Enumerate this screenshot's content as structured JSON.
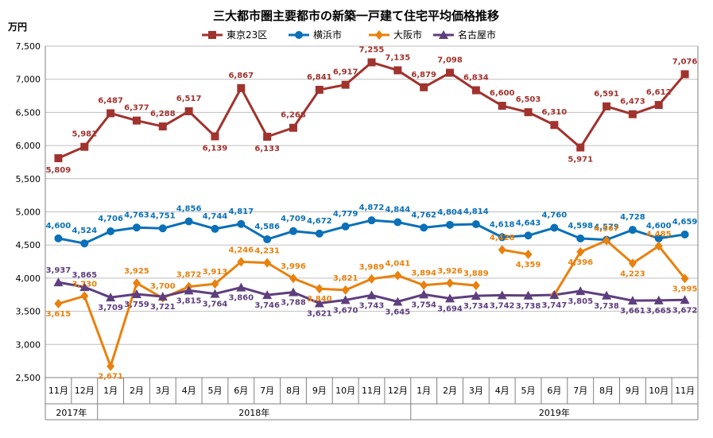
{
  "chart_data": {
    "type": "line",
    "title": "三大都市圏主要都市の新築一戸建て住宅平均価格推移",
    "unit_label": "万円",
    "ylim": [
      2500,
      7500
    ],
    "ytick_values": [
      2500,
      3000,
      3500,
      4000,
      4500,
      5000,
      5500,
      6000,
      6500,
      7000,
      7500
    ],
    "ytick_labels": [
      "2,500",
      "3,000",
      "3,500",
      "4,000",
      "4,500",
      "5,000",
      "5,500",
      "6,000",
      "6,500",
      "7,000",
      "7,500"
    ],
    "grid": true,
    "legend_position": "top",
    "categories": [
      "11月",
      "12月",
      "1月",
      "2月",
      "3月",
      "4月",
      "5月",
      "6月",
      "7月",
      "8月",
      "9月",
      "10月",
      "11月",
      "12月",
      "1月",
      "2月",
      "3月",
      "4月",
      "5月",
      "6月",
      "7月",
      "8月",
      "9月",
      "10月",
      "11月"
    ],
    "years": [
      {
        "label": "2017年",
        "start": 0,
        "end": 1
      },
      {
        "label": "2018年",
        "start": 2,
        "end": 13
      },
      {
        "label": "2019年",
        "start": 14,
        "end": 24
      }
    ],
    "series": [
      {
        "name": "東京23区",
        "color": "#A0332E",
        "marker": "square",
        "values": [
          5809,
          5981,
          6487,
          6377,
          6288,
          6517,
          6139,
          6867,
          6133,
          6268,
          6841,
          6917,
          7255,
          7135,
          6879,
          7098,
          6834,
          6600,
          6503,
          6310,
          5971,
          6591,
          6473,
          6612,
          7076
        ],
        "labels": [
          "5,809",
          "5,981",
          "6,487",
          "6,377",
          "6,288",
          "6,517",
          "6,139",
          "6,867",
          "6,133",
          "6,268",
          "6,841",
          "6,917",
          "7,255",
          "7,135",
          "6,879",
          "7,098",
          "6,834",
          "6,600",
          "6,503",
          "6,310",
          "5,971",
          "6,591",
          "6,473",
          "6,612",
          "7,076"
        ]
      },
      {
        "name": "横浜市",
        "color": "#0A70B8",
        "marker": "circle",
        "values": [
          4600,
          4524,
          4706,
          4763,
          4751,
          4856,
          4744,
          4817,
          4586,
          4709,
          4672,
          4779,
          4872,
          4844,
          4762,
          4804,
          4814,
          4618,
          4643,
          4760,
          4598,
          4579,
          4728,
          4600,
          4659
        ],
        "labels": [
          "4,600",
          "4,524",
          "4,706",
          "4,763",
          "4,751",
          "4,856",
          "4,744",
          "4,817",
          "4,586",
          "4,709",
          "4,672",
          "4,779",
          "4,872",
          "4,844",
          "4,762",
          "4,804",
          "4,814",
          "4,618",
          "4,643",
          "4,760",
          "4,598",
          "4,579",
          "4,728",
          "4,600",
          "4,659"
        ]
      },
      {
        "name": "大阪市",
        "color": "#E8810E",
        "marker": "diamond",
        "values": [
          3615,
          3730,
          2671,
          3925,
          3700,
          3872,
          3913,
          4246,
          4231,
          3996,
          3840,
          3821,
          3989,
          4041,
          3894,
          3926,
          3889,
          4428,
          4359,
          3747,
          4396,
          4567,
          4223,
          4485,
          3995
        ],
        "labels": [
          "3,615",
          "3,730",
          "2,671",
          "3,925",
          "3,700",
          "3,872",
          "3,913",
          "4,246",
          "4,231",
          "3,996",
          "3,840",
          "3,821",
          "3,989",
          "4,041",
          "3,894",
          "3,926",
          "3,889",
          "4,428",
          "4,359",
          "",
          "4,396",
          "4,567",
          "4,223",
          "4,485",
          "3,995"
        ],
        "breaks_after": [
          16,
          18
        ]
      },
      {
        "name": "名古屋市",
        "color": "#5E3E7E",
        "marker": "triangle",
        "values": [
          3937,
          3865,
          3709,
          3759,
          3721,
          3815,
          3764,
          3860,
          3746,
          3788,
          3621,
          3670,
          3743,
          3645,
          3754,
          3694,
          3734,
          3742,
          3738,
          3747,
          3805,
          3738,
          3661,
          3665,
          3672
        ],
        "labels": [
          "3,937",
          "3,865",
          "3,709",
          "3,759",
          "3,721",
          "3,815",
          "3,764",
          "3,860",
          "3,746",
          "3,788",
          "3,621",
          "3,670",
          "3,743",
          "3,645",
          "3,754",
          "3,694",
          "3,734",
          "3,742",
          "3,738",
          "3,747",
          "3,805",
          "3,738",
          "3,661",
          "3,665",
          "3,672"
        ]
      }
    ]
  }
}
